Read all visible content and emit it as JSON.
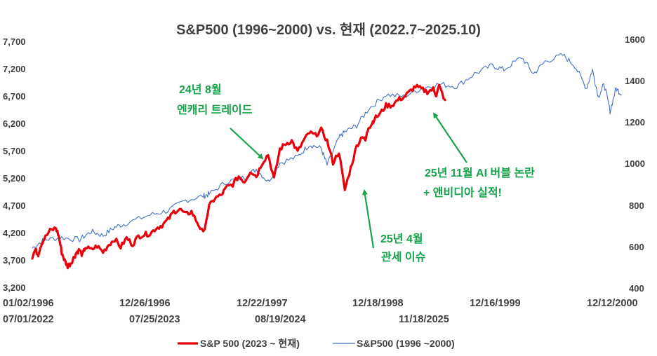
{
  "chart_data": {
    "type": "line",
    "title": "S&P500 (1996~2000) vs. 현재 (2022.7~2025.10)",
    "colors": {
      "current": "#e8000b",
      "history": "#4472c4",
      "annotation": "#17a34a",
      "text": "#404040"
    },
    "y_left": {
      "ticks": [
        "3,200",
        "3,700",
        "4,200",
        "4,700",
        "5,200",
        "5,700",
        "6,200",
        "6,700",
        "7,200",
        "7,700"
      ],
      "range": [
        3200,
        7700
      ]
    },
    "y_right": {
      "ticks": [
        "400",
        "600",
        "800",
        "1000",
        "1200",
        "1400",
        "1600"
      ],
      "range": [
        400,
        1600
      ]
    },
    "x_top_labels": [
      "01/02/1996",
      "12/26/1996",
      "12/22/1997",
      "12/18/1998",
      "12/16/1999",
      "12/12/2000"
    ],
    "x_bottom_labels": [
      "07/01/2022",
      "07/25/2023",
      "08/19/2024",
      "11/18/2025"
    ],
    "series": [
      {
        "name": "S&P 500 (2023 ~ 현재)",
        "axis": "left",
        "x": [
          0,
          0.005,
          0.01,
          0.015,
          0.02,
          0.03,
          0.04,
          0.045,
          0.05,
          0.055,
          0.06,
          0.065,
          0.07,
          0.075,
          0.08,
          0.085,
          0.09,
          0.1,
          0.11,
          0.12,
          0.13,
          0.14,
          0.15,
          0.16,
          0.17,
          0.18,
          0.19,
          0.2,
          0.21,
          0.22,
          0.23,
          0.24,
          0.25,
          0.26,
          0.27,
          0.28,
          0.29,
          0.3,
          0.31,
          0.32,
          0.33,
          0.34,
          0.35,
          0.36,
          0.37,
          0.38,
          0.39,
          0.4,
          0.41,
          0.42,
          0.43,
          0.44,
          0.45,
          0.46,
          0.47,
          0.48,
          0.49,
          0.5,
          0.51,
          0.52,
          0.53,
          0.54,
          0.55,
          0.56,
          0.565,
          0.57,
          0.575,
          0.58,
          0.59,
          0.6,
          0.61,
          0.62,
          0.63,
          0.64,
          0.65,
          0.66,
          0.67,
          0.68,
          0.685,
          0.69,
          0.7
        ],
        "values": [
          3780,
          3900,
          3820,
          4000,
          4100,
          4250,
          4300,
          4150,
          3850,
          3700,
          3600,
          3650,
          3750,
          3850,
          3900,
          3800,
          3950,
          3900,
          3970,
          3860,
          4000,
          4100,
          3950,
          4120,
          4000,
          4150,
          4180,
          4200,
          4300,
          4350,
          4450,
          4600,
          4650,
          4550,
          4600,
          4400,
          4200,
          4700,
          4850,
          4900,
          5050,
          5100,
          5250,
          5150,
          5350,
          5250,
          5500,
          5650,
          5200,
          5750,
          5850,
          5900,
          5700,
          5900,
          6050,
          6000,
          6100,
          5900,
          5500,
          5700,
          5000,
          5400,
          5800,
          6000,
          5900,
          6150,
          6200,
          6300,
          6400,
          6550,
          6550,
          6650,
          6700,
          6800,
          6900,
          6850,
          6800,
          6850,
          6750,
          6900,
          6650
        ]
      },
      {
        "name": "S&P500 (1996 ~2000)",
        "axis": "right",
        "x": [
          0,
          0.02,
          0.05,
          0.08,
          0.1,
          0.12,
          0.14,
          0.16,
          0.2,
          0.23,
          0.26,
          0.29,
          0.3,
          0.33,
          0.36,
          0.38,
          0.4,
          0.42,
          0.45,
          0.47,
          0.49,
          0.5,
          0.52,
          0.53,
          0.55,
          0.57,
          0.6,
          0.63,
          0.66,
          0.69,
          0.72,
          0.75,
          0.78,
          0.8,
          0.83,
          0.85,
          0.87,
          0.9,
          0.92,
          0.94,
          0.95,
          0.96,
          0.97,
          0.98,
          0.99,
          1.0
        ],
        "values": [
          600,
          640,
          650,
          640,
          680,
          660,
          700,
          720,
          760,
          780,
          830,
          850,
          860,
          920,
          940,
          980,
          920,
          1010,
          1040,
          1100,
          1080,
          1000,
          1130,
          1160,
          1190,
          1270,
          1340,
          1330,
          1370,
          1390,
          1380,
          1440,
          1480,
          1460,
          1520,
          1440,
          1500,
          1530,
          1480,
          1370,
          1460,
          1330,
          1390,
          1260,
          1370,
          1340
        ]
      }
    ],
    "annotations": [
      {
        "lines": [
          "24년 8월",
          "엔캐리 트레이드"
        ]
      },
      {
        "lines": [
          "25년 11월 AI 버블 논란",
          "+ 앤비디아 실적!"
        ]
      },
      {
        "lines": [
          "25년 4월",
          "관세 이슈"
        ]
      }
    ]
  }
}
